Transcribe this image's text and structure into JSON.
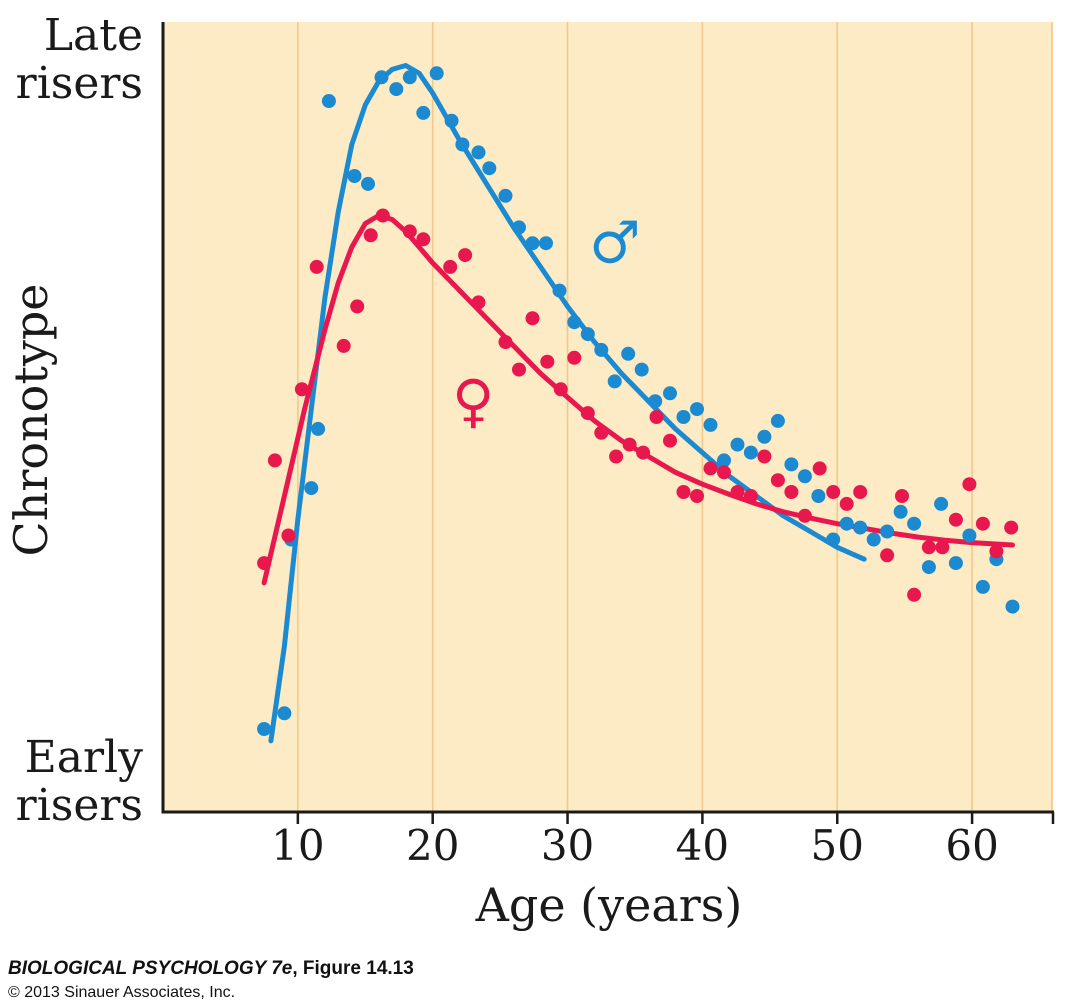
{
  "chart_data": {
    "type": "scatter",
    "xlabel": "Age (years)",
    "ylabel": "Chronotype",
    "y_top_label": [
      "Late",
      "risers"
    ],
    "y_bottom_label": [
      "Early",
      "risers"
    ],
    "xlim": [
      0,
      66
    ],
    "ylim": [
      0,
      100
    ],
    "x_ticks": [
      10,
      20,
      30,
      40,
      50,
      60
    ],
    "grid": "vertical",
    "series": [
      {
        "name": "♂",
        "color": "#1b8ad0",
        "points": [
          [
            7.5,
            10.5
          ],
          [
            9,
            12.5
          ],
          [
            9.5,
            34.5
          ],
          [
            11,
            41
          ],
          [
            11.5,
            48.5
          ],
          [
            12.3,
            90
          ],
          [
            14.2,
            80.5
          ],
          [
            15.2,
            79.5
          ],
          [
            16.2,
            93
          ],
          [
            17.3,
            91.5
          ],
          [
            18.3,
            93
          ],
          [
            19.3,
            88.5
          ],
          [
            20.3,
            93.5
          ],
          [
            21.4,
            87.5
          ],
          [
            22.2,
            84.5
          ],
          [
            23.4,
            83.5
          ],
          [
            24.2,
            81.5
          ],
          [
            25.4,
            78
          ],
          [
            26.4,
            74
          ],
          [
            27.4,
            72
          ],
          [
            28.4,
            72
          ],
          [
            29.4,
            66
          ],
          [
            30.5,
            62
          ],
          [
            31.5,
            60.5
          ],
          [
            32.5,
            58.5
          ],
          [
            33.5,
            54.5
          ],
          [
            34.5,
            58
          ],
          [
            35.5,
            56
          ],
          [
            36.5,
            52
          ],
          [
            37.6,
            53
          ],
          [
            38.6,
            50
          ],
          [
            39.6,
            51
          ],
          [
            40.6,
            49
          ],
          [
            41.6,
            44.5
          ],
          [
            42.6,
            46.5
          ],
          [
            43.6,
            45.5
          ],
          [
            44.6,
            47.5
          ],
          [
            45.6,
            49.5
          ],
          [
            46.6,
            44
          ],
          [
            47.6,
            42.5
          ],
          [
            48.6,
            40
          ],
          [
            49.7,
            34.5
          ],
          [
            50.7,
            36.5
          ],
          [
            51.7,
            36
          ],
          [
            52.7,
            34.5
          ],
          [
            53.7,
            35.5
          ],
          [
            54.7,
            38
          ],
          [
            55.7,
            36.5
          ],
          [
            56.8,
            31
          ],
          [
            57.7,
            39
          ],
          [
            58.8,
            31.5
          ],
          [
            59.8,
            35
          ],
          [
            60.8,
            28.5
          ],
          [
            61.8,
            32
          ],
          [
            63,
            26
          ]
        ],
        "curve": [
          [
            8,
            9
          ],
          [
            9,
            21
          ],
          [
            10,
            37
          ],
          [
            11,
            51
          ],
          [
            12,
            65
          ],
          [
            13,
            76
          ],
          [
            14,
            84.5
          ],
          [
            15,
            89.5
          ],
          [
            16,
            92.5
          ],
          [
            17,
            94
          ],
          [
            18,
            94.5
          ],
          [
            19,
            93.5
          ],
          [
            20,
            91
          ],
          [
            21,
            88
          ],
          [
            22,
            85
          ],
          [
            24,
            79.5
          ],
          [
            26,
            74
          ],
          [
            28,
            69
          ],
          [
            30,
            64
          ],
          [
            32,
            59.5
          ],
          [
            34,
            55.5
          ],
          [
            36,
            52
          ],
          [
            38,
            48.5
          ],
          [
            40,
            45.5
          ],
          [
            42,
            42.5
          ],
          [
            44,
            40
          ],
          [
            46,
            37.5
          ],
          [
            48,
            35.5
          ],
          [
            50,
            33.5
          ],
          [
            52,
            32
          ]
        ]
      },
      {
        "name": "♀",
        "color": "#e8184e",
        "points": [
          [
            7.5,
            31.5
          ],
          [
            8.3,
            44.5
          ],
          [
            9.3,
            35
          ],
          [
            10.3,
            53.5
          ],
          [
            11.4,
            69
          ],
          [
            13.4,
            59
          ],
          [
            14.4,
            64
          ],
          [
            15.4,
            73
          ],
          [
            16.3,
            75.5
          ],
          [
            18.3,
            73.5
          ],
          [
            19.3,
            72.5
          ],
          [
            21.3,
            69
          ],
          [
            22.4,
            70.5
          ],
          [
            23.4,
            64.5
          ],
          [
            25.4,
            59.5
          ],
          [
            26.4,
            56
          ],
          [
            27.4,
            62.5
          ],
          [
            28.5,
            57
          ],
          [
            29.5,
            53.5
          ],
          [
            30.5,
            57.5
          ],
          [
            31.5,
            50.5
          ],
          [
            32.5,
            48
          ],
          [
            33.6,
            45
          ],
          [
            34.6,
            46.5
          ],
          [
            35.6,
            45.5
          ],
          [
            36.6,
            50
          ],
          [
            37.6,
            47
          ],
          [
            38.6,
            40.5
          ],
          [
            39.6,
            40
          ],
          [
            40.6,
            43.5
          ],
          [
            41.6,
            43
          ],
          [
            42.6,
            40.5
          ],
          [
            43.6,
            40
          ],
          [
            44.6,
            45
          ],
          [
            45.6,
            42
          ],
          [
            46.6,
            40.5
          ],
          [
            47.6,
            37.5
          ],
          [
            48.7,
            43.5
          ],
          [
            49.7,
            40.5
          ],
          [
            50.7,
            39
          ],
          [
            51.7,
            40.5
          ],
          [
            53.7,
            32.5
          ],
          [
            54.8,
            40
          ],
          [
            55.7,
            27.5
          ],
          [
            56.8,
            33.5
          ],
          [
            57.8,
            33.5
          ],
          [
            58.8,
            37
          ],
          [
            59.8,
            41.5
          ],
          [
            60.8,
            36.5
          ],
          [
            61.8,
            33
          ],
          [
            62.9,
            36
          ]
        ],
        "curve": [
          [
            7.5,
            29
          ],
          [
            9,
            40
          ],
          [
            10.5,
            51
          ],
          [
            12,
            61
          ],
          [
            13,
            67
          ],
          [
            14,
            71.5
          ],
          [
            15,
            74.5
          ],
          [
            16,
            75.5
          ],
          [
            17,
            75
          ],
          [
            18,
            73.5
          ],
          [
            19,
            71.5
          ],
          [
            20,
            69.5
          ],
          [
            22,
            66
          ],
          [
            24,
            62.5
          ],
          [
            26,
            59
          ],
          [
            28,
            55.5
          ],
          [
            30,
            52.5
          ],
          [
            32,
            49.5
          ],
          [
            34,
            47
          ],
          [
            36,
            45
          ],
          [
            38,
            43
          ],
          [
            40,
            41.5
          ],
          [
            42,
            40.2
          ],
          [
            44,
            39
          ],
          [
            46,
            38
          ],
          [
            48,
            37.2
          ],
          [
            50,
            36.5
          ],
          [
            52,
            35.9
          ],
          [
            54,
            35.3
          ],
          [
            56,
            34.8
          ],
          [
            58,
            34.4
          ],
          [
            60,
            34.1
          ],
          [
            63,
            33.8
          ]
        ]
      }
    ],
    "symbol_positions": {
      "male": [
        33.5,
        72
      ],
      "female": [
        23,
        52
      ]
    }
  },
  "caption": {
    "title": "BIOLOGICAL PSYCHOLOGY 7e",
    "figure": ", Figure 14.13",
    "copyright": "© 2013 Sinauer Associates, Inc."
  }
}
